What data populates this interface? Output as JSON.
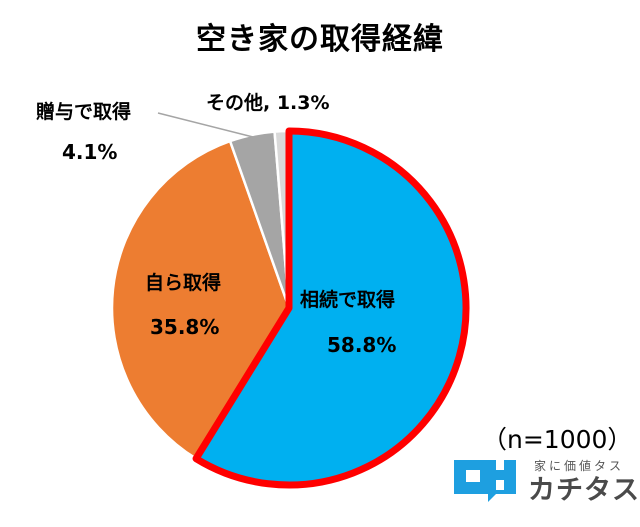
{
  "title": "空き家の取得経緯",
  "sample_size_label": "（n=1000）",
  "logo": {
    "tagline": "家に価値タス",
    "name": "カチタス",
    "brand_color": "#1E9FE0"
  },
  "labels": {
    "inherit_name": "相続で取得",
    "inherit_value": "58.8%",
    "self_name": "自ら取得",
    "self_value": "35.8%",
    "gift_name": "贈与で取得",
    "gift_value": "4.1%",
    "other": "その他, 1.3%"
  },
  "chart_data": {
    "type": "pie",
    "title": "空き家の取得経緯",
    "note": "（n=1000）",
    "categories": [
      "相続で取得",
      "自ら取得",
      "贈与で取得",
      "その他"
    ],
    "values": [
      58.8,
      35.8,
      4.1,
      1.3
    ],
    "unit": "%",
    "colors": [
      "#00B0F0",
      "#ED7D31",
      "#A5A5A5",
      "#D9D9D9"
    ],
    "highlight": {
      "category": "相続で取得",
      "outline_color": "#FF0000"
    },
    "start_angle": "12 o'clock, clockwise",
    "legend": "none (data labels on/near slices)"
  }
}
